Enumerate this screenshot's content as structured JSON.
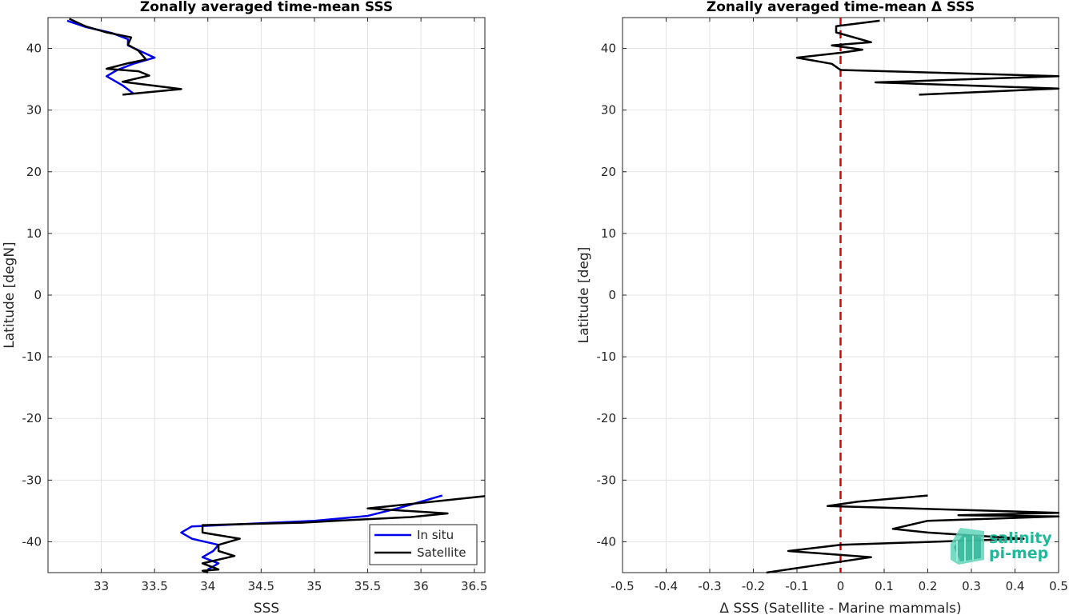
{
  "chart_data": [
    {
      "type": "line",
      "title": "Zonally averaged time-mean SSS",
      "xlabel": "SSS",
      "ylabel": "Latitude [degN]",
      "xlim": [
        32.5,
        36.6
      ],
      "ylim": [
        -45,
        45
      ],
      "xticks": [
        33,
        33.5,
        34,
        34.5,
        35,
        35.5,
        36,
        36.5
      ],
      "xtick_labels": [
        "33",
        "33.5",
        "34",
        "34.5",
        "35",
        "35.5",
        "36",
        "36.5"
      ],
      "yticks": [
        -40,
        -30,
        -20,
        -10,
        0,
        10,
        20,
        30,
        40
      ],
      "ytick_labels": [
        "-40",
        "-30",
        "-20",
        "-10",
        "0",
        "10",
        "20",
        "30",
        "40"
      ],
      "grid": true,
      "legend_position": "bottom-right",
      "series": [
        {
          "name": "In situ",
          "color": "#0000ee",
          "segments": [
            [
              [
                32.68,
                44.5
              ],
              [
                32.85,
                43.5
              ],
              [
                33.1,
                42.5
              ],
              [
                33.25,
                41.5
              ],
              [
                33.25,
                40.5
              ],
              [
                33.5,
                38.5
              ],
              [
                33.3,
                37.5
              ],
              [
                33.15,
                36.5
              ],
              [
                33.05,
                35.5
              ],
              [
                33.2,
                34.0
              ],
              [
                33.3,
                32.7
              ]
            ],
            [
              [
                36.2,
                -32.5
              ],
              [
                35.8,
                -34.5
              ],
              [
                35.5,
                -35.8
              ],
              [
                35.0,
                -36.6
              ],
              [
                34.5,
                -37.0
              ],
              [
                34.0,
                -37.4
              ],
              [
                33.85,
                -37.5
              ],
              [
                33.75,
                -38.5
              ],
              [
                33.85,
                -39.5
              ],
              [
                34.1,
                -40.5
              ],
              [
                34.05,
                -41.5
              ],
              [
                33.95,
                -42.5
              ],
              [
                34.1,
                -43.5
              ],
              [
                34.0,
                -44.5
              ]
            ]
          ]
        },
        {
          "name": "Satellite",
          "color": "#000000",
          "segments": [
            [
              [
                32.7,
                44.8
              ],
              [
                32.85,
                43.6
              ],
              [
                33.05,
                42.6
              ],
              [
                33.28,
                41.8
              ],
              [
                33.25,
                40.6
              ],
              [
                33.35,
                39.6
              ],
              [
                33.42,
                38.2
              ],
              [
                33.25,
                37.6
              ],
              [
                33.05,
                36.7
              ],
              [
                33.35,
                36.3
              ],
              [
                33.45,
                35.6
              ],
              [
                33.2,
                34.6
              ],
              [
                33.75,
                33.4
              ],
              [
                33.2,
                32.5
              ]
            ],
            [
              [
                36.6,
                -32.6
              ],
              [
                35.5,
                -34.6
              ],
              [
                36.25,
                -35.4
              ],
              [
                35.9,
                -36.0
              ],
              [
                35.3,
                -36.5
              ],
              [
                34.9,
                -36.9
              ],
              [
                34.4,
                -37.1
              ],
              [
                33.95,
                -37.3
              ],
              [
                33.95,
                -38.5
              ],
              [
                34.3,
                -39.5
              ],
              [
                34.1,
                -40.5
              ],
              [
                34.1,
                -41.5
              ],
              [
                34.25,
                -42.3
              ],
              [
                33.95,
                -43.5
              ],
              [
                34.1,
                -44.5
              ],
              [
                33.95,
                -44.7
              ],
              [
                34.0,
                -45.0
              ]
            ]
          ]
        }
      ]
    },
    {
      "type": "line",
      "title": "Zonally averaged time-mean Δ SSS",
      "xlabel": "Δ SSS (Satellite - Marine mammals)",
      "ylabel": "Latitude [deg]",
      "xlim": [
        -0.5,
        0.5
      ],
      "ylim": [
        -45,
        45
      ],
      "xticks": [
        -0.5,
        -0.4,
        -0.3,
        -0.2,
        -0.1,
        0,
        0.1,
        0.2,
        0.3,
        0.4,
        0.5
      ],
      "xtick_labels": [
        "-0.5",
        "-0.4",
        "-0.3",
        "-0.2",
        "-0.1",
        "0",
        "0.1",
        "0.2",
        "0.3",
        "0.4",
        "0.5"
      ],
      "yticks": [
        -40,
        -30,
        -20,
        -10,
        0,
        10,
        20,
        30,
        40
      ],
      "ytick_labels": [
        "-40",
        "-30",
        "-20",
        "-10",
        "0",
        "10",
        "20",
        "30",
        "40"
      ],
      "grid": true,
      "reference_line": {
        "x": 0,
        "color": "#dd0000",
        "style": "dashed"
      },
      "series": [
        {
          "color": "#000000",
          "segments": [
            [
              [
                0.09,
                44.5
              ],
              [
                -0.01,
                43.6
              ],
              [
                -0.01,
                42.6
              ],
              [
                0.07,
                41.0
              ],
              [
                -0.02,
                40.5
              ],
              [
                0.05,
                39.8
              ],
              [
                0.0,
                39.3
              ],
              [
                -0.1,
                38.5
              ],
              [
                -0.02,
                37.5
              ],
              [
                0.0,
                36.5
              ],
              [
                0.5,
                35.5
              ],
              [
                0.08,
                34.5
              ],
              [
                0.5,
                33.5
              ],
              [
                0.18,
                32.5
              ]
            ],
            [
              [
                0.2,
                -32.5
              ],
              [
                0.04,
                -33.5
              ],
              [
                -0.03,
                -34.2
              ],
              [
                0.5,
                -35.3
              ],
              [
                0.27,
                -35.7
              ],
              [
                0.5,
                -35.9
              ],
              [
                0.2,
                -36.6
              ],
              [
                0.12,
                -37.9
              ],
              [
                0.2,
                -38.5
              ],
              [
                0.42,
                -39.5
              ],
              [
                0.0,
                -40.5
              ],
              [
                -0.12,
                -41.5
              ],
              [
                0.07,
                -42.5
              ],
              [
                -0.17,
                -45.0
              ]
            ]
          ]
        }
      ]
    }
  ],
  "watermark": {
    "line1": "salinity",
    "line2": "pi-mep",
    "color": "#1fb89a"
  }
}
